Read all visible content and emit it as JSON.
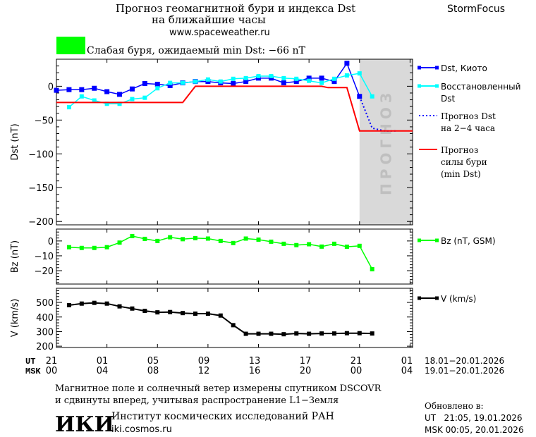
{
  "header": {
    "title_line1": "Прогноз геомагнитной бури и индекса Dst",
    "title_line2": "на ближайшие часы",
    "url": "www.spaceweather.ru",
    "brand": "StormFocus",
    "status_text": "Слабая буря, ожидаемый min Dst: −66 nT",
    "status_color": "#00ff00"
  },
  "forecast_band_label": "ПРОГНОЗ",
  "time_axis": {
    "ut_label": "UT",
    "msk_label": "MSK",
    "ut_ticks": [
      "21",
      "01",
      "05",
      "09",
      "13",
      "17",
      "21",
      "01"
    ],
    "msk_ticks": [
      "00",
      "04",
      "08",
      "12",
      "16",
      "20",
      "00",
      "04"
    ],
    "ut_range": "18.01−20.01.2026",
    "msk_range": "19.01−20.01.2026"
  },
  "footer": {
    "note_line1": "Магнитное поле и солнечный ветер измерены спутником DSCOVR",
    "note_line2": "и сдвинуты вперед, учитывая распространение L1−Земля",
    "institute": "Институт космических исследований РАН",
    "institute_url": "iki.cosmos.ru",
    "logo_text": "ИКИ",
    "updated_label": "Обновлено в:",
    "updated_ut": "UT   21:05, 19.01.2026",
    "updated_msk": "MSK 00:05, 20.01.2026"
  },
  "chart_data": [
    {
      "type": "line",
      "ylabel": "Dst (nT)",
      "xlim_hours": [
        0,
        28.2
      ],
      "ylim": [
        -205,
        40
      ],
      "yticks": [
        0,
        -50,
        -100,
        -150,
        -200
      ],
      "forecast_band_hours": [
        24,
        28.2
      ],
      "forecast_band_color": "#d9d9d9",
      "series": [
        {
          "name": "Dst, Киото",
          "color": "#0000ff",
          "style": "line-square",
          "x": [
            0,
            1,
            2,
            3,
            4,
            5,
            6,
            7,
            8,
            9,
            10,
            11,
            12,
            13,
            14,
            15,
            16,
            17,
            18,
            19,
            20,
            21,
            22,
            23,
            24
          ],
          "values": [
            -6,
            -5,
            -5,
            -3,
            -8,
            -12,
            -4,
            4,
            3,
            1,
            5,
            7,
            7,
            5,
            4,
            7,
            12,
            12,
            5,
            7,
            12,
            12,
            7,
            34,
            -15
          ]
        },
        {
          "name": "Восстановленный Dst",
          "color": "#00ffff",
          "style": "line-square",
          "x": [
            1,
            2,
            3,
            4,
            5,
            6,
            7,
            8,
            9,
            10,
            11,
            12,
            13,
            14,
            15,
            16,
            17,
            18,
            19,
            20,
            21,
            22,
            23,
            24,
            25
          ],
          "values": [
            -31,
            -15,
            -21,
            -26,
            -26,
            -19,
            -17,
            -3,
            5,
            5,
            7,
            10,
            7,
            11,
            12,
            15,
            15,
            12,
            11,
            8,
            5,
            11,
            16,
            19,
            -15
          ]
        },
        {
          "name": "Прогноз Dst на 2−4 часа",
          "color": "#0000ff",
          "style": "dotted",
          "x": [
            24,
            25,
            26,
            27
          ],
          "values": [
            -15,
            -62,
            -66,
            -66
          ]
        },
        {
          "name": "Прогноз силы бури (min Dst)",
          "color": "#ff0000",
          "style": "line",
          "x": [
            0,
            10,
            11,
            21,
            21.5,
            23,
            24,
            28.2
          ],
          "values": [
            -24,
            -24,
            0,
            0,
            -2,
            -2,
            -66,
            -66
          ]
        }
      ]
    },
    {
      "type": "line",
      "ylabel": "Bz (nT)",
      "xlim_hours": [
        0,
        28.2
      ],
      "ylim": [
        -29,
        8
      ],
      "yticks": [
        0,
        -10,
        -20
      ],
      "series": [
        {
          "name": "Bz (nT, GSM)",
          "color": "#00ff00",
          "style": "line-square",
          "x": [
            1,
            2,
            3,
            4,
            5,
            6,
            7,
            8,
            9,
            10,
            11,
            12,
            13,
            14,
            15,
            16,
            17,
            18,
            19,
            20,
            21,
            22,
            23,
            24,
            25
          ],
          "values": [
            -4.2,
            -4.7,
            -4.7,
            -4.2,
            -1.1,
            3.3,
            1.4,
            0,
            2.5,
            1.2,
            1.9,
            1.6,
            0,
            -1.4,
            1.6,
            0.9,
            -0.5,
            -1.9,
            -2.8,
            -2.2,
            -3.8,
            -1.9,
            -3.9,
            -3.3,
            -19
          ]
        }
      ]
    },
    {
      "type": "line",
      "ylabel": "V (km/s)",
      "xlim_hours": [
        0,
        28.2
      ],
      "ylim": [
        191,
        597
      ],
      "yticks": [
        500,
        400,
        300,
        200
      ],
      "series": [
        {
          "name": "V (km/s)",
          "color": "#000000",
          "style": "line-square",
          "x": [
            1,
            2,
            3,
            4,
            5,
            6,
            7,
            8,
            9,
            10,
            11,
            12,
            13,
            14,
            15,
            16,
            17,
            18,
            19,
            20,
            21,
            22,
            23,
            24,
            25
          ],
          "values": [
            481,
            492,
            497,
            492,
            473,
            458,
            442,
            432,
            434,
            427,
            423,
            423,
            410,
            344,
            285,
            285,
            285,
            282,
            287,
            285,
            287,
            287,
            289,
            289,
            287
          ]
        }
      ]
    }
  ]
}
